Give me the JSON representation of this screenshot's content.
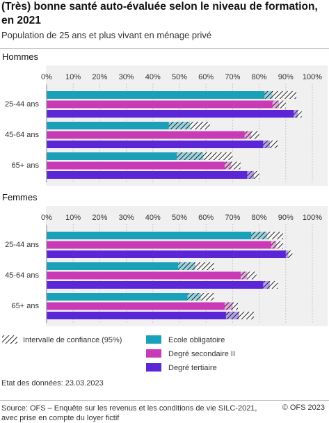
{
  "header": {
    "title": "(Très) bonne santé auto-évaluée selon le niveau de formation, en 2021",
    "subtitle": "Population de 25 ans et plus vivant en ménage privé"
  },
  "footer": {
    "data_date": "Etat des données: 23.03.2023",
    "source_line1": "Source: OFS – Enquête sur les revenus et les conditions de vie SILC-2021,",
    "source_line2": "avec prise en compte du loyer fictif",
    "copyright": "© OFS 2023"
  },
  "colors": {
    "ecole_obligatoire": "#1aa0b9",
    "degre_secondaire": "#c93ab6",
    "degre_tertiaire": "#5b27d6",
    "panel_bg": "#f0f0f0"
  },
  "chart_data": {
    "type": "bar",
    "orientation": "horizontal",
    "xlim": [
      0,
      100
    ],
    "ticks": [
      "0%",
      "10%",
      "20%",
      "30%",
      "40%",
      "50%",
      "60%",
      "70%",
      "80%",
      "90%",
      "100%"
    ],
    "series_names": [
      "Ecole obligatoire",
      "Degré secondaire II",
      "Degré tertiaire"
    ],
    "ci_label": "Intervalle de confiance (95%)",
    "panels": [
      {
        "name": "Hommes",
        "categories": [
          {
            "label": "25-44 ans",
            "values": [
              85,
              87.5,
              94.5
            ],
            "ci": [
              [
                82,
                94
              ],
              [
                85,
                90
              ],
              [
                93,
                96
              ]
            ]
          },
          {
            "label": "45-64 ans",
            "values": [
              54,
              77,
              84
            ],
            "ci": [
              [
                46,
                61.5
              ],
              [
                74.5,
                80
              ],
              [
                81.5,
                87
              ]
            ]
          },
          {
            "label": "65+ ans",
            "values": [
              59,
              69.5,
              78
            ],
            "ci": [
              [
                49,
                70
              ],
              [
                67,
                73
              ],
              [
                75.5,
                80
              ]
            ]
          }
        ]
      },
      {
        "name": "Femmes",
        "categories": [
          {
            "label": "25-44 ans",
            "values": [
              83,
              86.5,
              91
            ],
            "ci": [
              [
                77,
                89
              ],
              [
                84.5,
                89
              ],
              [
                90,
                92.5
              ]
            ]
          },
          {
            "label": "45-64 ans",
            "values": [
              56,
              75.5,
              84
            ],
            "ci": [
              [
                49.5,
                63
              ],
              [
                73,
                79
              ],
              [
                81.5,
                87
              ]
            ]
          },
          {
            "label": "65+ ans",
            "values": [
              58,
              70,
              72.5
            ],
            "ci": [
              [
                53,
                63
              ],
              [
                67,
                72
              ],
              [
                67.5,
                78
              ]
            ]
          }
        ]
      }
    ]
  }
}
